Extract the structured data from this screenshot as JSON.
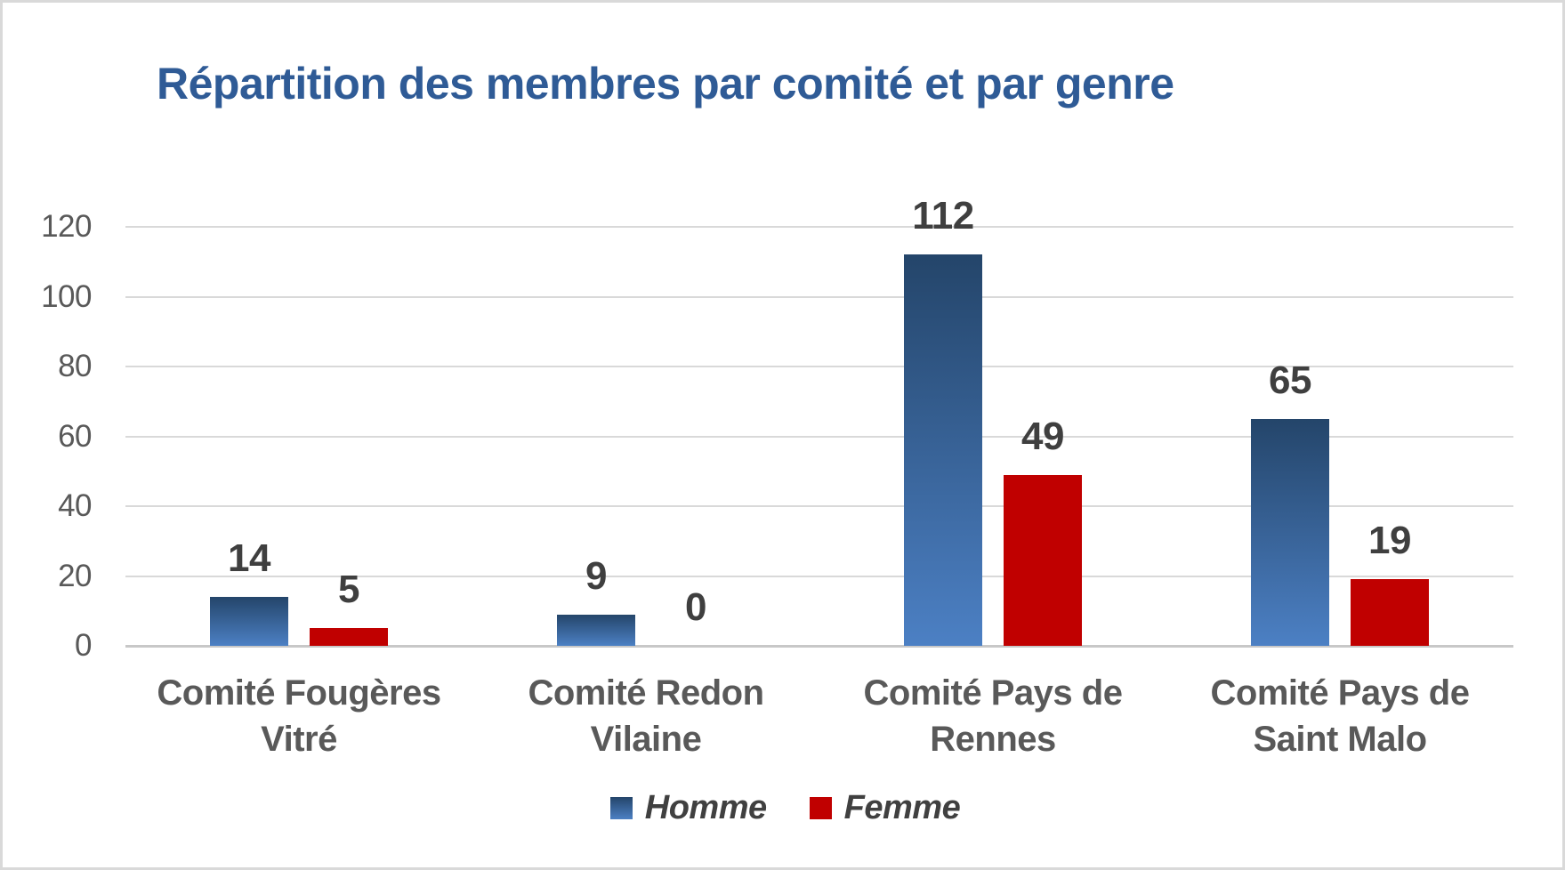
{
  "title": "Répartition des membres par comité et par genre",
  "colors": {
    "title": "#2F5B96",
    "homme_top": "#24456A",
    "homme_bottom": "#4C80C4",
    "femme": "#C00000",
    "axis_tick_label": "#595959",
    "category_label": "#595959",
    "data_label": "#3F3F3F",
    "legend_label": "#404040",
    "gridline": "#D9D9D9",
    "axis_line": "#C8C8C8",
    "canvas_border": "#D9D9D9",
    "background": "#FFFFFF"
  },
  "chart_data": {
    "type": "bar",
    "title": "Répartition des membres par comité et par genre",
    "categories": [
      "Comité Fougères\nVitré",
      "Comité Redon\nVilaine",
      "Comité Pays de\nRennes",
      "Comité  Pays de\nSaint Malo"
    ],
    "series": [
      {
        "name": "Homme",
        "values": [
          14,
          9,
          112,
          65
        ],
        "color_top": "#24456A",
        "color_bottom": "#4C80C4"
      },
      {
        "name": "Femme",
        "values": [
          5,
          0,
          49,
          19
        ],
        "color": "#C00000"
      }
    ],
    "xlabel": "",
    "ylabel": "",
    "ylim": [
      0,
      120
    ],
    "yticks": [
      0,
      20,
      40,
      60,
      80,
      100,
      120
    ],
    "grid": true,
    "data_labels": true,
    "legend_position": "bottom"
  }
}
